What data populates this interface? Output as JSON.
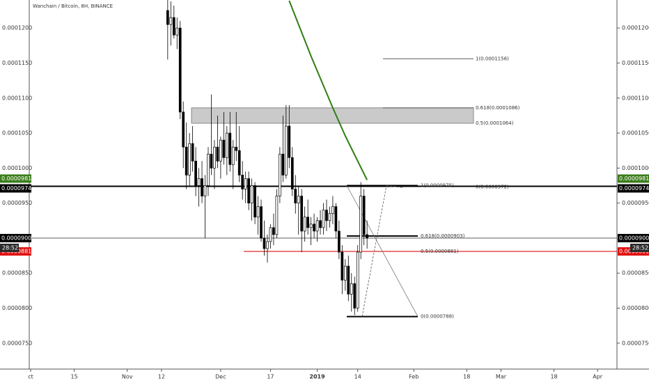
{
  "chart_data": {
    "type": "candlestick",
    "title": "Wanchain / Bitcoin, 8H, BINANCE",
    "x": [
      "2018-11-14",
      "2018-11-15",
      "2018-11-16",
      "2018-11-17",
      "2018-11-18",
      "2018-11-19",
      "2018-11-20",
      "2018-11-21",
      "2018-11-22",
      "2018-11-23",
      "2018-11-24",
      "2018-11-25",
      "2018-11-26",
      "2018-11-27",
      "2018-11-28",
      "2018-11-29",
      "2018-11-30",
      "2018-12-01",
      "2018-12-02",
      "2018-12-03",
      "2018-12-04",
      "2018-12-05",
      "2018-12-06",
      "2018-12-07",
      "2018-12-08",
      "2018-12-09",
      "2018-12-10",
      "2018-12-11",
      "2018-12-12",
      "2018-12-13",
      "2018-12-14",
      "2018-12-15",
      "2018-12-16",
      "2018-12-17",
      "2018-12-18",
      "2018-12-19",
      "2018-12-20",
      "2018-12-21",
      "2018-12-22",
      "2018-12-23",
      "2018-12-24",
      "2018-12-25",
      "2018-12-26",
      "2018-12-27",
      "2018-12-28",
      "2018-12-29",
      "2018-12-30",
      "2018-12-31",
      "2019-01-01",
      "2019-01-02",
      "2019-01-03",
      "2019-01-04",
      "2019-01-05",
      "2019-01-06",
      "2019-01-07",
      "2019-01-08",
      "2019-01-09",
      "2019-01-10",
      "2019-01-11",
      "2019-01-12",
      "2019-01-13",
      "2019-01-14",
      "2019-01-15",
      "2019-01-16",
      "2019-01-17"
    ],
    "open": [
      0.0001225,
      0.0001205,
      0.0001215,
      0.000119,
      0.00012,
      0.000108,
      0.000103,
      9.9e-05,
      0.0001035,
      0.000101,
      9.75e-05,
      9.85e-05,
      9.6e-05,
      9.75e-05,
      0.000102,
      0.0001,
      0.000103,
      0.000101,
      0.000104,
      0.0001015,
      0.000105,
      0.0001005,
      0.000103,
      0.0001025,
      9.9e-05,
      9.7e-05,
      9.85e-05,
      9.5e-05,
      9.75e-05,
      9.3e-05,
      9.45e-05,
      9e-05,
      8.85e-05,
      8.95e-05,
      9.15e-05,
      9.05e-05,
      9.6e-05,
      0.000102,
      9.9e-05,
      0.000106,
      0.0001015,
      9.7e-05,
      9.5e-05,
      9.6e-05,
      9.1e-05,
      9.3e-05,
      9.15e-05,
      9.2e-05,
      9.1e-05,
      9.25e-05,
      9.15e-05,
      9.4e-05,
      9.25e-05,
      9.35e-05,
      9.45e-05,
      9.1e-05,
      8.8e-05,
      8.4e-05,
      8.6e-05,
      8.2e-05,
      8.35e-05,
      8e-05,
      8.8e-05,
      9.6e-05,
      9.05e-05
    ],
    "high": [
      0.000124,
      0.0001238,
      0.0001232,
      0.0001215,
      0.000121,
      0.0001095,
      0.0001065,
      0.000105,
      0.000106,
      0.000103,
      0.0001,
      0.000101,
      9.9e-05,
      0.000103,
      0.0001105,
      0.000104,
      0.0001075,
      0.0001045,
      0.000108,
      0.000106,
      0.000108,
      0.000104,
      0.000108,
      0.000106,
      0.000101,
      9.95e-05,
      9.95e-05,
      9.85e-05,
      9.8e-05,
      9.6e-05,
      9.55e-05,
      9.25e-05,
      9.05e-05,
      9.2e-05,
      9.35e-05,
      9.7e-05,
      0.000103,
      0.0001075,
      0.000109,
      0.000109,
      0.000103,
      9.9e-05,
      9.75e-05,
      9.7e-05,
      9.45e-05,
      9.55e-05,
      9.3e-05,
      9.35e-05,
      9.3e-05,
      9.4e-05,
      9.5e-05,
      9.55e-05,
      9.45e-05,
      9.6e-05,
      9.5e-05,
      9.25e-05,
      8.9e-05,
      8.7e-05,
      8.75e-05,
      8.5e-05,
      8.45e-05,
      8.9e-05,
      9.8e-05,
      9.7e-05,
      9.25e-05
    ],
    "low": [
      0.0001155,
      0.0001175,
      0.0001185,
      0.000117,
      0.000107,
      0.0001,
      9.7e-05,
      9.75e-05,
      9.95e-05,
      9.6e-05,
      9.45e-05,
      9.5e-05,
      9e-05,
      9.6e-05,
      9.9e-05,
      9.7e-05,
      0.0001,
      9.85e-05,
      0.0001005,
      9.9e-05,
      9.95e-05,
      9.7e-05,
      0.000101,
      9.8e-05,
      9.55e-05,
      9.5e-05,
      9.4e-05,
      9.25e-05,
      9.2e-05,
      9.05e-05,
      8.95e-05,
      8.75e-05,
      8.65e-05,
      8.85e-05,
      8.9e-05,
      9e-05,
      9.5e-05,
      9.8e-05,
      9.85e-05,
      0.0001,
      9.6e-05,
      9.35e-05,
      9.05e-05,
      8.8e-05,
      8.95e-05,
      9.05e-05,
      8.9e-05,
      9e-05,
      8.95e-05,
      9.05e-05,
      9.05e-05,
      9.1e-05,
      9.15e-05,
      9.2e-05,
      9e-05,
      8.7e-05,
      8.2e-05,
      8.25e-05,
      8.1e-05,
      7.95e-05,
      7.9e-05,
      7.95e-05,
      8.7e-05,
      8.9e-05,
      8.85e-05
    ],
    "close": [
      0.0001205,
      0.0001215,
      0.000119,
      0.00012,
      0.000108,
      0.000103,
      9.9e-05,
      0.0001035,
      0.000101,
      9.75e-05,
      9.85e-05,
      9.6e-05,
      9.75e-05,
      0.000102,
      0.0001,
      0.000103,
      0.000101,
      0.000104,
      0.0001015,
      0.000105,
      0.0001005,
      0.000103,
      0.0001025,
      9.9e-05,
      9.7e-05,
      9.85e-05,
      9.5e-05,
      9.75e-05,
      9.3e-05,
      9.45e-05,
      9e-05,
      8.85e-05,
      8.95e-05,
      9.15e-05,
      9.05e-05,
      9.6e-05,
      0.000102,
      9.9e-05,
      0.000106,
      0.0001015,
      9.7e-05,
      9.5e-05,
      9.6e-05,
      9.1e-05,
      9.3e-05,
      9.15e-05,
      9.2e-05,
      9.1e-05,
      9.25e-05,
      9.15e-05,
      9.4e-05,
      9.25e-05,
      9.35e-05,
      9.45e-05,
      9.1e-05,
      8.8e-05,
      8.4e-05,
      8.6e-05,
      8.2e-05,
      8.35e-05,
      8e-05,
      8.8e-05,
      9.6e-05,
      9.05e-05,
      9e-05
    ],
    "ma": {
      "color": "#2e7d12",
      "x": [
        "2018-12-23",
        "2018-12-30",
        "2019-01-06",
        "2019-01-10",
        "2019-01-13",
        "2019-01-17"
      ],
      "values": [
        0.0001239,
        0.000116,
        0.0001086,
        0.0001046,
        0.0001019,
        9.83e-05
      ]
    },
    "zone": [
      0.0001064,
      0.0001086
    ],
    "fib_upper": [
      {
        "label": "1(0.0001156)",
        "value": 0.0001156
      },
      {
        "label": "0.618(0.0001086)",
        "value": 0.0001086
      },
      {
        "label": "0.5(0.0001064)",
        "value": 0.0001064
      }
    ],
    "fib_lower": [
      {
        "label": "1(0.0000975)",
        "value": 9.75e-05
      },
      {
        "label": "0.618(0.0000903)",
        "value": 9.03e-05
      },
      {
        "label": "0.5(0.0000881)",
        "value": 8.81e-05
      },
      {
        "label": "0(0.0000788)",
        "value": 7.88e-05
      }
    ],
    "fib_extra": {
      "label": "0(0.0000972)",
      "value": 9.72e-05
    },
    "price_lines": [
      {
        "label": "0.0000981",
        "value": 9.81e-05,
        "color": "#3b7d1b"
      },
      {
        "label": "0.0000974",
        "value": 9.74e-05,
        "color": "#000000"
      },
      {
        "label": "0.0000900",
        "value": 9e-05,
        "color": "#000000"
      },
      {
        "label": "0.0000881",
        "value": 8.81e-05,
        "color": "#e01010"
      }
    ],
    "countdown": "28:52",
    "xlim": [
      "2018-10-01",
      "2019-04-07"
    ],
    "xticks": [
      {
        "value": "2018-10-01",
        "label": "ct"
      },
      {
        "value": "2018-10-15",
        "label": "15"
      },
      {
        "value": "2018-11-01",
        "label": "Nov"
      },
      {
        "value": "2018-11-12",
        "label": "12"
      },
      {
        "value": "2018-12-01",
        "label": "Dec"
      },
      {
        "value": "2018-12-17",
        "label": "17"
      },
      {
        "value": "2019-01-01",
        "label": "2019"
      },
      {
        "value": "2019-01-14",
        "label": "14"
      },
      {
        "value": "2019-02-01",
        "label": "Feb"
      },
      {
        "value": "2019-02-18",
        "label": "18"
      },
      {
        "value": "2019-03-01",
        "label": "Mar"
      },
      {
        "value": "2019-03-18",
        "label": "18"
      },
      {
        "value": "2019-04-01",
        "label": "Apr"
      }
    ],
    "ylim": [
      7.13e-05,
      0.000124
    ],
    "yticks": [
      {
        "value": 0.00012,
        "label": "0.0001200"
      },
      {
        "value": 0.000115,
        "label": "0.0001150"
      },
      {
        "value": 0.00011,
        "label": "0.0001100"
      },
      {
        "value": 0.000105,
        "label": "0.0001050"
      },
      {
        "value": 0.0001,
        "label": "0.0001000"
      },
      {
        "value": 9.5e-05,
        "label": "0.0000950"
      },
      {
        "value": 8.5e-05,
        "label": "0.0000850"
      },
      {
        "value": 8e-05,
        "label": "0.0000800"
      },
      {
        "value": 7.5e-05,
        "label": "0.0000750"
      }
    ]
  }
}
